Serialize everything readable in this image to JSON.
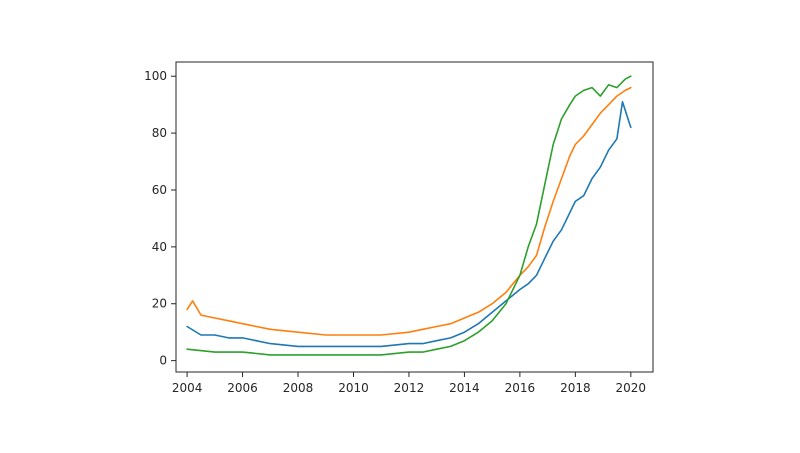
{
  "chart_data": {
    "type": "line",
    "title": "",
    "xlabel": "",
    "ylabel": "",
    "xlim": [
      2003.6,
      2020.8
    ],
    "ylim": [
      -4,
      105
    ],
    "x_ticks": [
      2004,
      2006,
      2008,
      2010,
      2012,
      2014,
      2016,
      2018,
      2020
    ],
    "x_tick_labels": [
      "2004",
      "2006",
      "2008",
      "2010",
      "2012",
      "2014",
      "2016",
      "2018",
      "2020"
    ],
    "y_ticks": [
      0,
      20,
      40,
      60,
      80,
      100
    ],
    "y_tick_labels": [
      "0",
      "20",
      "40",
      "60",
      "80",
      "100"
    ],
    "grid": false,
    "legend": "none",
    "series": [
      {
        "color": "#1f77b4",
        "x": [
          2004,
          2004.5,
          2005,
          2005.5,
          2006,
          2007,
          2008,
          2009,
          2010,
          2011,
          2012,
          2012.5,
          2013,
          2013.5,
          2014,
          2014.5,
          2015,
          2015.5,
          2016,
          2016.3,
          2016.6,
          2016.9,
          2017.2,
          2017.5,
          2017.8,
          2018,
          2018.3,
          2018.6,
          2018.9,
          2019.2,
          2019.5,
          2019.7,
          2019.9,
          2020
        ],
        "values": [
          12,
          9,
          9,
          8,
          8,
          6,
          5,
          5,
          5,
          5,
          6,
          6,
          7,
          8,
          10,
          13,
          17,
          21,
          25,
          27,
          30,
          36,
          42,
          46,
          52,
          56,
          58,
          64,
          68,
          74,
          78,
          91,
          85,
          82
        ]
      },
      {
        "color": "#ff7f0e",
        "x": [
          2004,
          2004.2,
          2004.5,
          2005,
          2005.5,
          2006,
          2006.5,
          2007,
          2008,
          2009,
          2010,
          2011,
          2012,
          2012.5,
          2013,
          2013.5,
          2014,
          2014.5,
          2015,
          2015.5,
          2016,
          2016.3,
          2016.6,
          2016.9,
          2017.2,
          2017.5,
          2017.8,
          2018,
          2018.3,
          2018.6,
          2018.9,
          2019.2,
          2019.5,
          2019.8,
          2020
        ],
        "values": [
          18,
          21,
          16,
          15,
          14,
          13,
          12,
          11,
          10,
          9,
          9,
          9,
          10,
          11,
          12,
          13,
          15,
          17,
          20,
          24,
          30,
          33,
          37,
          47,
          56,
          64,
          72,
          76,
          79,
          83,
          87,
          90,
          93,
          95,
          96
        ]
      },
      {
        "color": "#2ca02c",
        "x": [
          2004,
          2005,
          2006,
          2007,
          2008,
          2009,
          2010,
          2011,
          2012,
          2012.5,
          2013,
          2013.5,
          2014,
          2014.5,
          2015,
          2015.5,
          2016,
          2016.3,
          2016.6,
          2016.9,
          2017.2,
          2017.5,
          2017.8,
          2018,
          2018.3,
          2018.6,
          2018.9,
          2019.2,
          2019.5,
          2019.8,
          2020
        ],
        "values": [
          4,
          3,
          3,
          2,
          2,
          2,
          2,
          2,
          3,
          3,
          4,
          5,
          7,
          10,
          14,
          20,
          30,
          40,
          48,
          62,
          76,
          85,
          90,
          93,
          95,
          96,
          93,
          97,
          96,
          99,
          100
        ]
      }
    ]
  }
}
